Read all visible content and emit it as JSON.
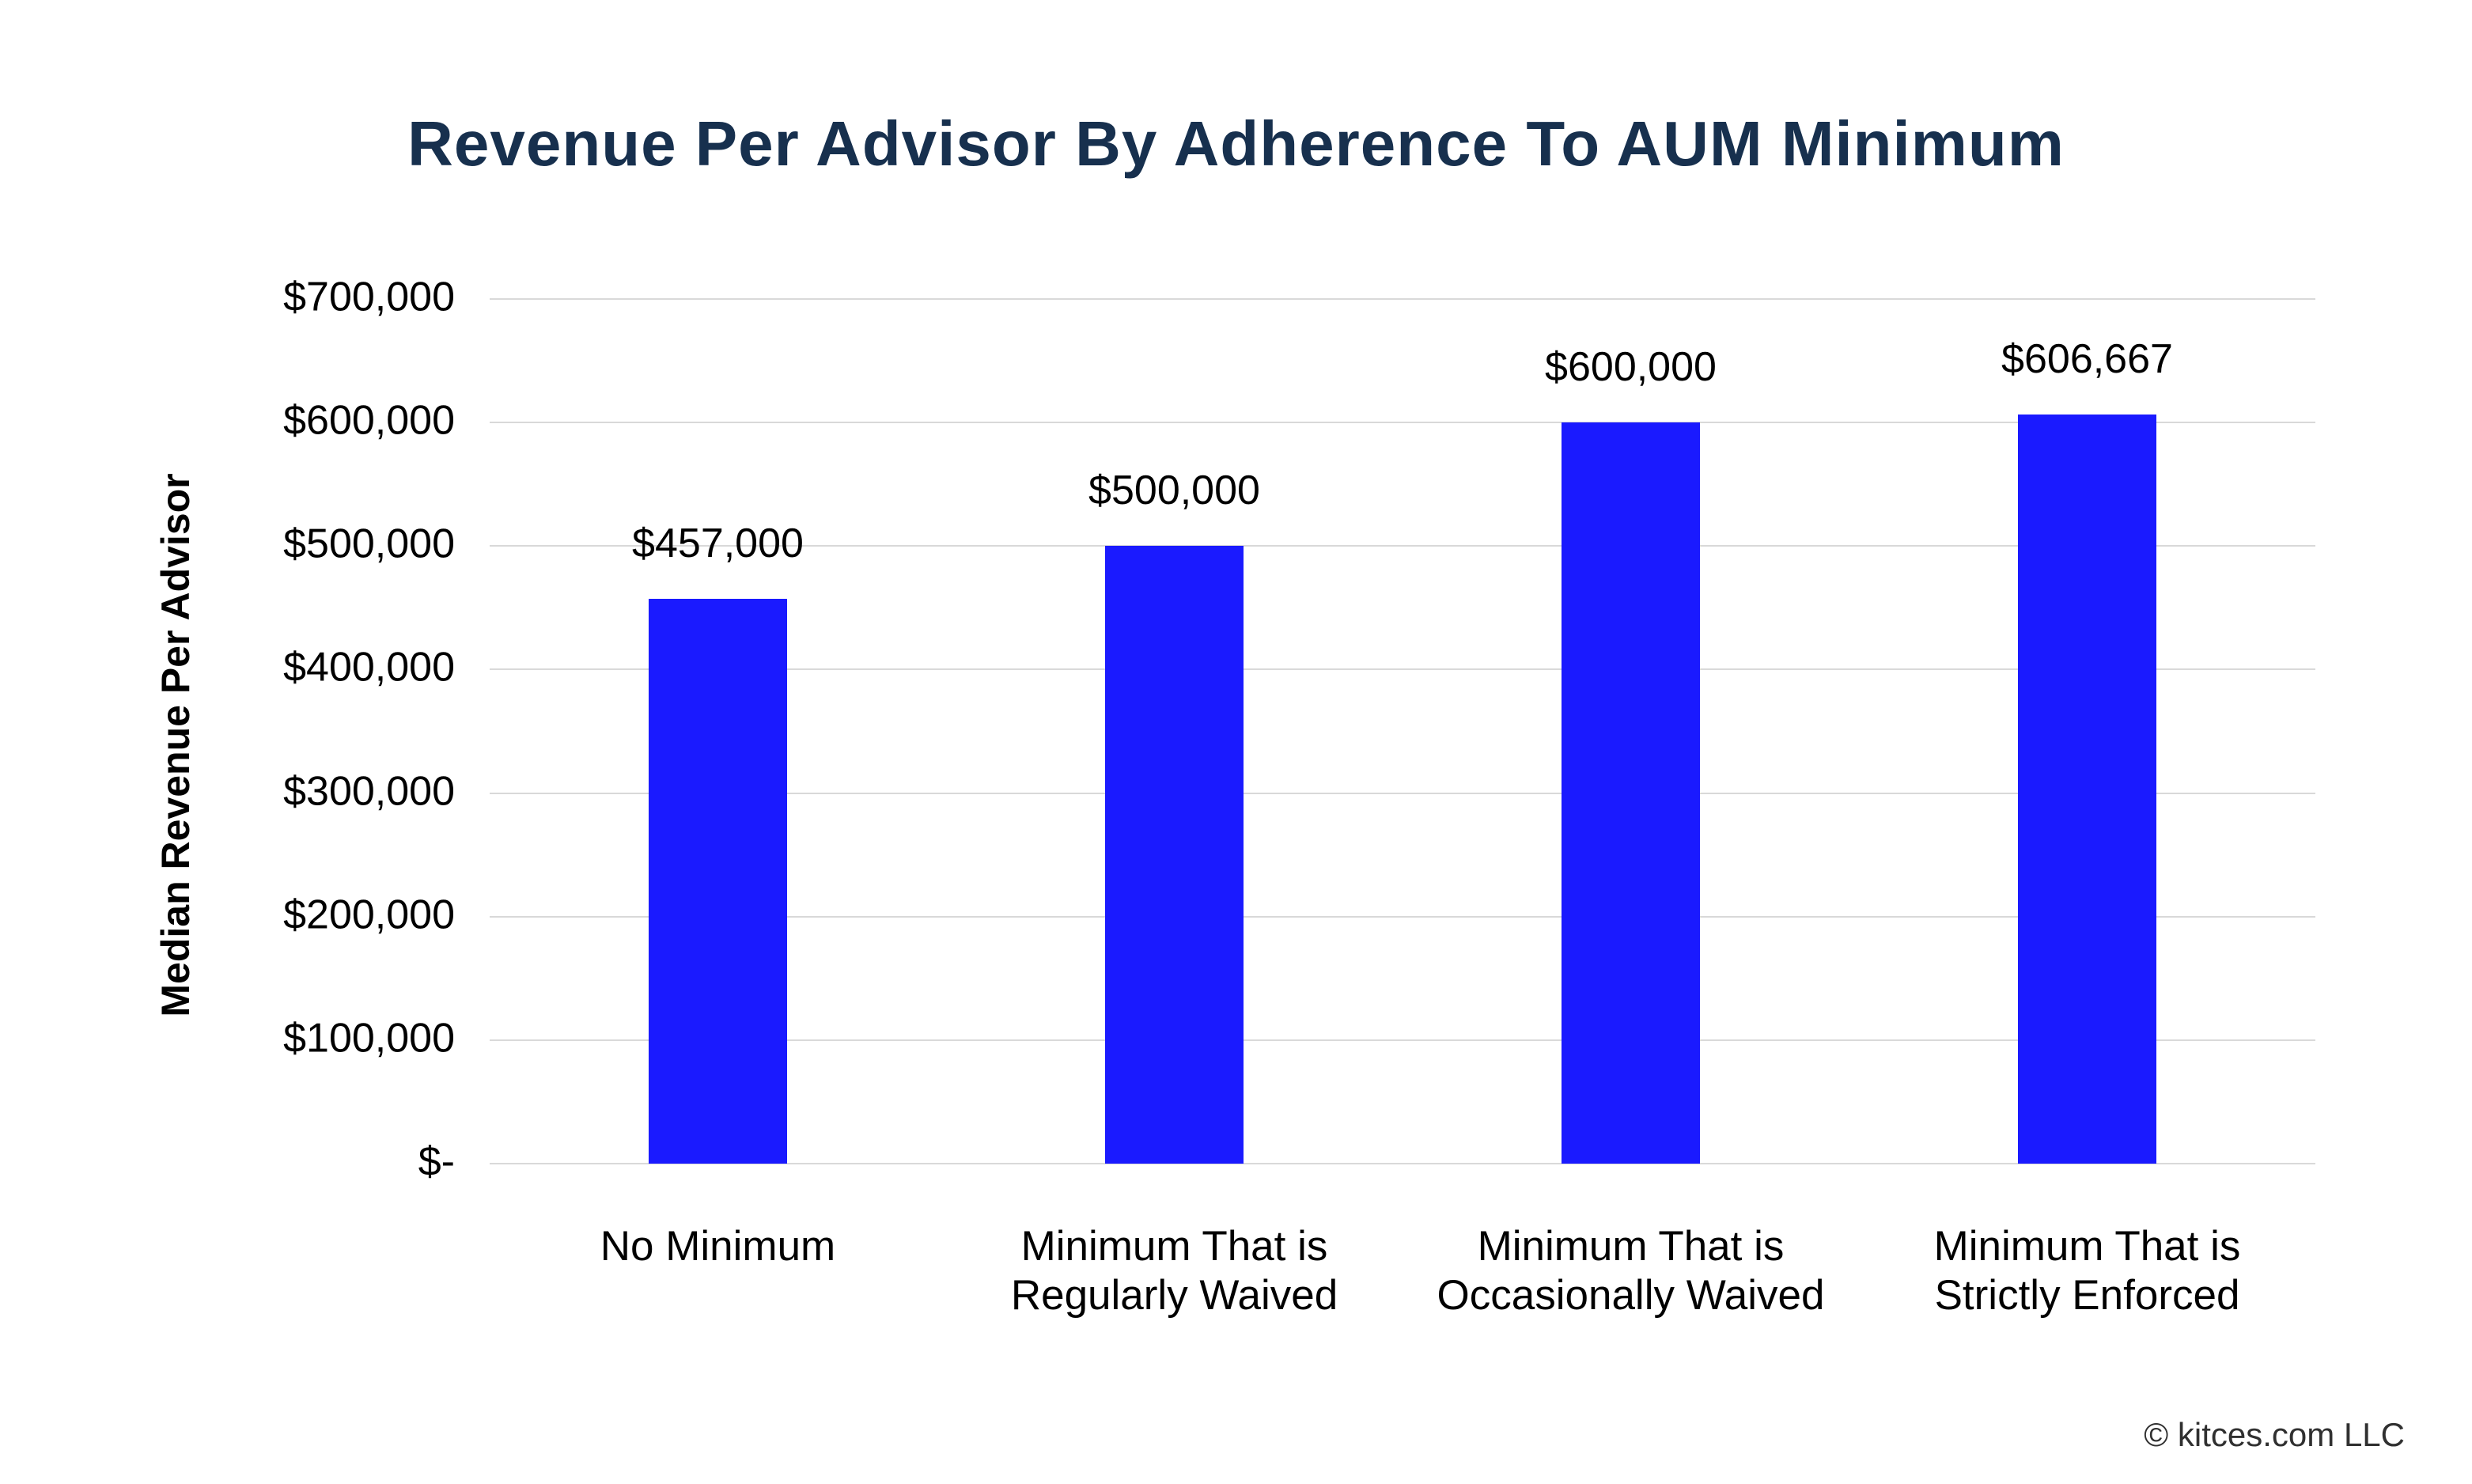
{
  "page": {
    "background": "#FFFFFF"
  },
  "chart_data": {
    "type": "bar",
    "title": "Revenue Per Advisor By Adherence To AUM Minimum",
    "ylabel": "Median Revenue Per Advisor",
    "xlabel": "",
    "categories": [
      "No Minimum",
      "Minimum That is\nRegularly Waived",
      "Minimum That is\nOccasionally Waived",
      "Minimum That is\nStrictly Enforced"
    ],
    "values": [
      457000,
      500000,
      600000,
      606667
    ],
    "bar_labels": [
      "$457,000",
      "$500,000",
      "$600,000",
      "$606,667"
    ],
    "yticks": [
      {
        "label": "$700,000",
        "value": 700000
      },
      {
        "label": "$600,000",
        "value": 600000
      },
      {
        "label": "$500,000",
        "value": 500000
      },
      {
        "label": "$400,000",
        "value": 400000
      },
      {
        "label": "$300,000",
        "value": 300000
      },
      {
        "label": "$200,000",
        "value": 200000
      },
      {
        "label": "$100,000",
        "value": 100000
      },
      {
        "label": "$-",
        "value": 0
      }
    ],
    "ylim": [
      0,
      700000
    ],
    "grid": true,
    "legend": false,
    "colors": {
      "bar": "#1A1AFF",
      "title": "#17304E",
      "gridline": "#D9D9D9",
      "labels": "#000000",
      "footer": "#303030"
    }
  },
  "footer": {
    "text": "© kitces.com LLC"
  }
}
